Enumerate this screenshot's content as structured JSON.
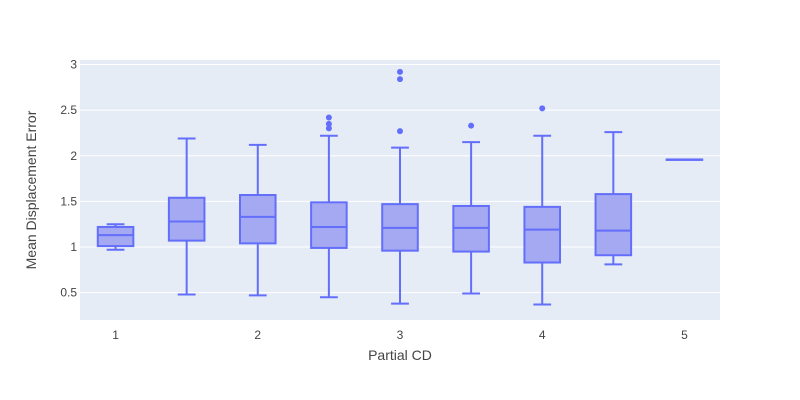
{
  "chart_data": {
    "type": "box",
    "xlabel": "Partial CD",
    "ylabel": "Mean Displacement Error",
    "xlim": [
      0.75,
      5.25
    ],
    "ylim": [
      0.2,
      3.05
    ],
    "x_ticks": [
      1,
      2,
      3,
      4,
      5
    ],
    "y_ticks": [
      0.5,
      1,
      1.5,
      2,
      2.5,
      3
    ],
    "y_tick_labels": [
      "0.5",
      "1",
      "1.5",
      "2",
      "2.5",
      "3"
    ],
    "grid": true,
    "colors": {
      "box_line": "#636efa",
      "box_fill": "#a4a9f2",
      "plot_bg": "#e5ecf6",
      "grid": "#ffffff"
    },
    "boxes": [
      {
        "x": 1.0,
        "lowerfence": 0.97,
        "q1": 1.01,
        "median": 1.13,
        "q3": 1.22,
        "upperfence": 1.25,
        "outliers": []
      },
      {
        "x": 1.5,
        "lowerfence": 0.48,
        "q1": 1.07,
        "median": 1.28,
        "q3": 1.54,
        "upperfence": 2.19,
        "outliers": []
      },
      {
        "x": 2.0,
        "lowerfence": 0.47,
        "q1": 1.04,
        "median": 1.33,
        "q3": 1.57,
        "upperfence": 2.12,
        "outliers": []
      },
      {
        "x": 2.5,
        "lowerfence": 0.45,
        "q1": 0.99,
        "median": 1.22,
        "q3": 1.49,
        "upperfence": 2.22,
        "outliers": [
          2.3,
          2.35,
          2.42
        ]
      },
      {
        "x": 3.0,
        "lowerfence": 0.38,
        "q1": 0.96,
        "median": 1.21,
        "q3": 1.47,
        "upperfence": 2.09,
        "outliers": [
          2.27,
          2.84,
          2.92
        ]
      },
      {
        "x": 3.5,
        "lowerfence": 0.49,
        "q1": 0.95,
        "median": 1.21,
        "q3": 1.45,
        "upperfence": 2.15,
        "outliers": [
          2.33
        ]
      },
      {
        "x": 4.0,
        "lowerfence": 0.37,
        "q1": 0.83,
        "median": 1.19,
        "q3": 1.44,
        "upperfence": 2.22,
        "outliers": [
          2.52
        ]
      },
      {
        "x": 4.5,
        "lowerfence": 0.81,
        "q1": 0.91,
        "median": 1.18,
        "q3": 1.58,
        "upperfence": 2.26,
        "outliers": []
      },
      {
        "x": 5.0,
        "lowerfence": 1.96,
        "q1": 1.96,
        "median": 1.96,
        "q3": 1.96,
        "upperfence": 1.96,
        "outliers": []
      }
    ]
  }
}
